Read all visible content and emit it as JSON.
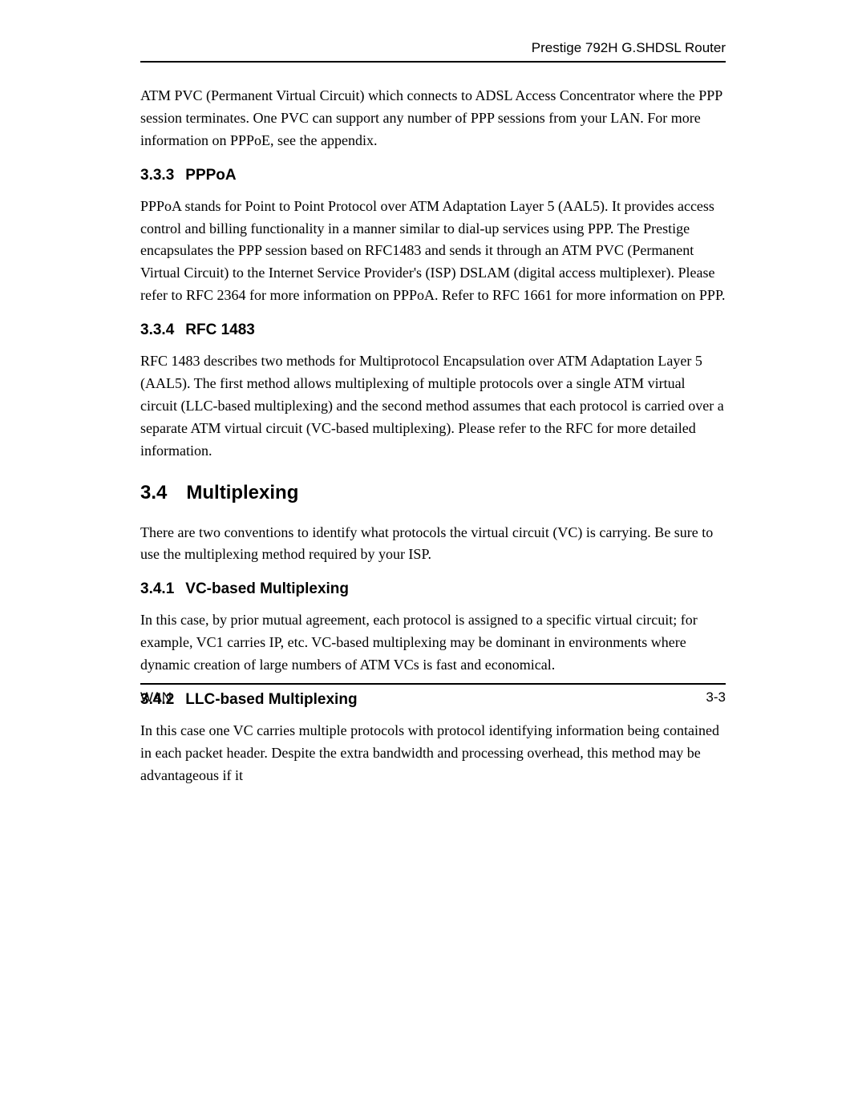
{
  "header": {
    "title": "Prestige 792H G.SHDSL Router"
  },
  "intro_paragraph": "ATM PVC (Permanent Virtual Circuit) which connects to ADSL Access Concentrator where the PPP session terminates. One PVC can support any number of PPP sessions from your LAN. For more information on PPPoE, see the appendix.",
  "s333": {
    "num": "3.3.3",
    "title": "PPPoA",
    "body": "PPPoA stands for Point to Point Protocol over ATM Adaptation Layer 5 (AAL5). It provides access control and billing functionality in a manner similar to dial-up services using PPP. The Prestige encapsulates the PPP session based on RFC1483 and sends it through an ATM PVC (Permanent Virtual Circuit) to the Internet Service Provider's (ISP) DSLAM (digital access multiplexer). Please refer to RFC 2364 for more information on PPPoA. Refer to RFC 1661 for more information on PPP."
  },
  "s334": {
    "num": "3.3.4",
    "title": "RFC 1483",
    "body": "RFC 1483 describes two methods for Multiprotocol Encapsulation over ATM Adaptation Layer 5 (AAL5). The first method allows multiplexing of multiple protocols over a single ATM virtual circuit (LLC-based multiplexing) and the second method assumes that each protocol is carried over a separate ATM virtual circuit (VC-based multiplexing). Please refer to the RFC for more detailed information."
  },
  "s34": {
    "num": "3.4",
    "title": "Multiplexing",
    "body": "There are two conventions to identify what protocols the virtual circuit (VC) is carrying. Be sure to use the multiplexing method required by your ISP."
  },
  "s341": {
    "num": "3.4.1",
    "title": "VC-based Multiplexing",
    "body": "In this case, by prior mutual agreement, each protocol is assigned to a specific virtual circuit; for example, VC1 carries IP, etc. VC-based multiplexing may be dominant in environments where dynamic creation of large numbers of ATM VCs is fast and economical."
  },
  "s342": {
    "num": "3.4.2",
    "title": "LLC-based Multiplexing",
    "body": "In this case one VC carries multiple protocols with protocol identifying information being contained in each packet header. Despite the extra bandwidth and processing overhead, this method may be advantageous if it"
  },
  "footer": {
    "left": "WAN",
    "right": "3-3"
  }
}
